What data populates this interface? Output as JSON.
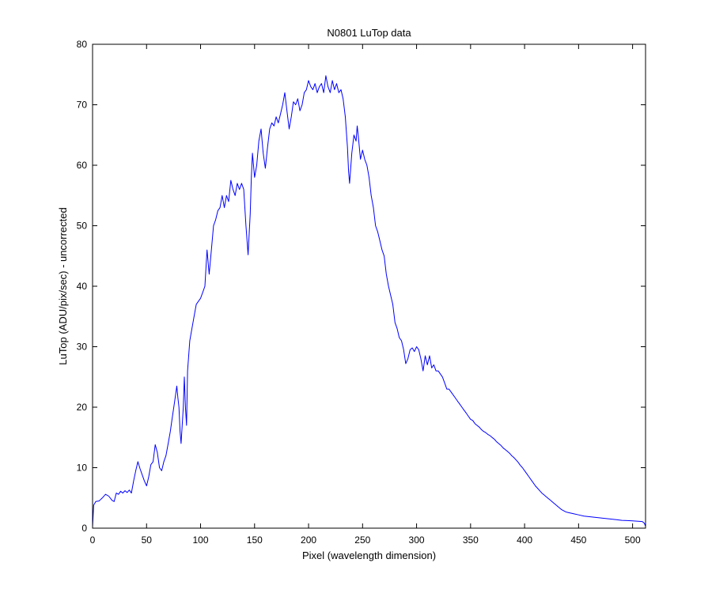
{
  "figure": {
    "title": "N0801   LuTop data",
    "xlabel": "Pixel (wavelength dimension)",
    "ylabel": "LuTop (ADU/pix/sec) - uncorrected",
    "background": "#ffffff",
    "axes_color": "#000000",
    "line_color": "#0000ff"
  },
  "chart_data": {
    "type": "line",
    "title": "N0801   LuTop data",
    "xlabel": "Pixel (wavelength dimension)",
    "ylabel": "LuTop (ADU/pix/sec) - uncorrected",
    "xlim": [
      0,
      512
    ],
    "ylim": [
      0,
      80
    ],
    "xticks": [
      0,
      50,
      100,
      150,
      200,
      250,
      300,
      350,
      400,
      450,
      500
    ],
    "xtick_labels": [
      "0",
      "50",
      "100",
      "150",
      "200",
      "250",
      "300",
      "350",
      "400",
      "450",
      "500"
    ],
    "yticks": [
      0,
      10,
      20,
      30,
      40,
      50,
      60,
      70,
      80
    ],
    "ytick_labels": [
      "0",
      "10",
      "20",
      "30",
      "40",
      "50",
      "60",
      "70",
      "80"
    ],
    "grid": false,
    "legend": "none",
    "series": [
      {
        "color": "#0000ff",
        "points": [
          [
            0,
            0.2
          ],
          [
            1,
            3.8
          ],
          [
            3,
            4.4
          ],
          [
            6,
            4.5
          ],
          [
            9,
            5.0
          ],
          [
            12,
            5.6
          ],
          [
            15,
            5.3
          ],
          [
            18,
            4.6
          ],
          [
            20,
            4.4
          ],
          [
            22,
            5.8
          ],
          [
            24,
            5.6
          ],
          [
            26,
            6.1
          ],
          [
            28,
            5.8
          ],
          [
            30,
            6.2
          ],
          [
            32,
            5.9
          ],
          [
            34,
            6.3
          ],
          [
            36,
            5.8
          ],
          [
            38,
            7.8
          ],
          [
            40,
            9.5
          ],
          [
            42,
            11.0
          ],
          [
            44,
            9.8
          ],
          [
            46,
            8.8
          ],
          [
            48,
            7.8
          ],
          [
            50,
            7.0
          ],
          [
            52,
            8.5
          ],
          [
            54,
            10.5
          ],
          [
            56,
            11.0
          ],
          [
            58,
            13.8
          ],
          [
            60,
            12.5
          ],
          [
            62,
            10.0
          ],
          [
            64,
            9.5
          ],
          [
            66,
            11.0
          ],
          [
            68,
            12.0
          ],
          [
            70,
            14.0
          ],
          [
            72,
            16.0
          ],
          [
            74,
            18.5
          ],
          [
            76,
            21.0
          ],
          [
            78,
            23.5
          ],
          [
            79,
            21.5
          ],
          [
            80,
            20.0
          ],
          [
            81,
            16.0
          ],
          [
            82,
            14.0
          ],
          [
            84,
            20.0
          ],
          [
            85,
            25.0
          ],
          [
            86,
            20.0
          ],
          [
            87,
            17.0
          ],
          [
            88,
            26.0
          ],
          [
            90,
            31.0
          ],
          [
            92,
            33.0
          ],
          [
            94,
            35.0
          ],
          [
            96,
            37.0
          ],
          [
            98,
            37.5
          ],
          [
            100,
            38.0
          ],
          [
            102,
            39.0
          ],
          [
            104,
            40.0
          ],
          [
            106,
            46.0
          ],
          [
            108,
            42.0
          ],
          [
            110,
            46.0
          ],
          [
            112,
            50.0
          ],
          [
            114,
            51.0
          ],
          [
            116,
            52.5
          ],
          [
            118,
            53.0
          ],
          [
            120,
            55.0
          ],
          [
            122,
            53.0
          ],
          [
            124,
            55.0
          ],
          [
            126,
            54.0
          ],
          [
            128,
            57.5
          ],
          [
            130,
            56.0
          ],
          [
            132,
            55.0
          ],
          [
            134,
            57.0
          ],
          [
            136,
            56.0
          ],
          [
            138,
            57.0
          ],
          [
            140,
            56.0
          ],
          [
            142,
            50.0
          ],
          [
            144,
            45.2
          ],
          [
            146,
            52.0
          ],
          [
            147,
            58.0
          ],
          [
            148,
            62.0
          ],
          [
            150,
            58.0
          ],
          [
            152,
            60.0
          ],
          [
            154,
            64.0
          ],
          [
            156,
            66.0
          ],
          [
            158,
            62.0
          ],
          [
            160,
            59.5
          ],
          [
            162,
            63.0
          ],
          [
            164,
            66.0
          ],
          [
            166,
            67.0
          ],
          [
            168,
            66.5
          ],
          [
            170,
            68.0
          ],
          [
            172,
            67.0
          ],
          [
            174,
            68.5
          ],
          [
            176,
            70.0
          ],
          [
            178,
            72.0
          ],
          [
            180,
            69.0
          ],
          [
            182,
            66.0
          ],
          [
            184,
            68.0
          ],
          [
            186,
            70.5
          ],
          [
            188,
            70.0
          ],
          [
            190,
            71.0
          ],
          [
            192,
            69.0
          ],
          [
            194,
            70.0
          ],
          [
            196,
            72.0
          ],
          [
            198,
            72.5
          ],
          [
            200,
            74.0
          ],
          [
            202,
            73.0
          ],
          [
            204,
            72.5
          ],
          [
            206,
            73.5
          ],
          [
            208,
            72.0
          ],
          [
            210,
            73.0
          ],
          [
            212,
            73.5
          ],
          [
            214,
            72.0
          ],
          [
            216,
            74.8
          ],
          [
            218,
            73.0
          ],
          [
            220,
            72.0
          ],
          [
            222,
            74.0
          ],
          [
            224,
            72.5
          ],
          [
            226,
            73.5
          ],
          [
            228,
            72.0
          ],
          [
            230,
            72.5
          ],
          [
            232,
            71.0
          ],
          [
            234,
            68.0
          ],
          [
            236,
            63.0
          ],
          [
            237,
            59.0
          ],
          [
            238,
            57.0
          ],
          [
            240,
            62.0
          ],
          [
            242,
            65.0
          ],
          [
            244,
            64.0
          ],
          [
            245,
            66.5
          ],
          [
            246,
            65.0
          ],
          [
            248,
            61.0
          ],
          [
            250,
            62.5
          ],
          [
            252,
            61.0
          ],
          [
            254,
            60.0
          ],
          [
            256,
            58.0
          ],
          [
            258,
            55.0
          ],
          [
            260,
            53.0
          ],
          [
            262,
            50.0
          ],
          [
            264,
            49.0
          ],
          [
            266,
            47.5
          ],
          [
            268,
            46.0
          ],
          [
            270,
            45.0
          ],
          [
            272,
            42.0
          ],
          [
            274,
            40.0
          ],
          [
            276,
            38.5
          ],
          [
            278,
            37.0
          ],
          [
            280,
            34.0
          ],
          [
            282,
            33.0
          ],
          [
            284,
            31.5
          ],
          [
            286,
            31.0
          ],
          [
            288,
            29.5
          ],
          [
            290,
            27.2
          ],
          [
            292,
            28.0
          ],
          [
            294,
            29.5
          ],
          [
            296,
            29.8
          ],
          [
            298,
            29.2
          ],
          [
            300,
            30.0
          ],
          [
            302,
            29.5
          ],
          [
            304,
            28.0
          ],
          [
            306,
            26.0
          ],
          [
            308,
            28.5
          ],
          [
            310,
            27.0
          ],
          [
            312,
            28.5
          ],
          [
            314,
            26.5
          ],
          [
            316,
            27.0
          ],
          [
            318,
            26.0
          ],
          [
            320,
            26.0
          ],
          [
            322,
            25.5
          ],
          [
            324,
            25.0
          ],
          [
            326,
            24.0
          ],
          [
            328,
            23.0
          ],
          [
            330,
            23.0
          ],
          [
            332,
            22.5
          ],
          [
            334,
            22.0
          ],
          [
            336,
            21.5
          ],
          [
            338,
            21.0
          ],
          [
            340,
            20.5
          ],
          [
            342,
            20.0
          ],
          [
            344,
            19.5
          ],
          [
            346,
            19.0
          ],
          [
            348,
            18.5
          ],
          [
            350,
            18.0
          ],
          [
            352,
            17.8
          ],
          [
            354,
            17.3
          ],
          [
            356,
            17.0
          ],
          [
            358,
            16.7
          ],
          [
            360,
            16.3
          ],
          [
            362,
            16.0
          ],
          [
            364,
            15.8
          ],
          [
            366,
            15.5
          ],
          [
            368,
            15.3
          ],
          [
            370,
            15.0
          ],
          [
            372,
            14.7
          ],
          [
            374,
            14.3
          ],
          [
            376,
            14.0
          ],
          [
            378,
            13.7
          ],
          [
            380,
            13.3
          ],
          [
            382,
            13.0
          ],
          [
            384,
            12.7
          ],
          [
            386,
            12.4
          ],
          [
            388,
            12.0
          ],
          [
            390,
            11.7
          ],
          [
            392,
            11.3
          ],
          [
            394,
            10.9
          ],
          [
            396,
            10.4
          ],
          [
            398,
            10.0
          ],
          [
            400,
            9.5
          ],
          [
            402,
            9.0
          ],
          [
            404,
            8.5
          ],
          [
            406,
            8.0
          ],
          [
            408,
            7.5
          ],
          [
            410,
            7.0
          ],
          [
            412,
            6.6
          ],
          [
            414,
            6.2
          ],
          [
            416,
            5.8
          ],
          [
            418,
            5.5
          ],
          [
            420,
            5.2
          ],
          [
            422,
            4.9
          ],
          [
            424,
            4.6
          ],
          [
            426,
            4.3
          ],
          [
            428,
            4.0
          ],
          [
            430,
            3.7
          ],
          [
            432,
            3.4
          ],
          [
            434,
            3.1
          ],
          [
            436,
            2.9
          ],
          [
            438,
            2.7
          ],
          [
            440,
            2.6
          ],
          [
            445,
            2.4
          ],
          [
            450,
            2.2
          ],
          [
            455,
            2.0
          ],
          [
            460,
            1.9
          ],
          [
            465,
            1.8
          ],
          [
            470,
            1.7
          ],
          [
            475,
            1.6
          ],
          [
            480,
            1.5
          ],
          [
            485,
            1.4
          ],
          [
            490,
            1.3
          ],
          [
            495,
            1.25
          ],
          [
            500,
            1.2
          ],
          [
            505,
            1.15
          ],
          [
            509,
            1.1
          ],
          [
            511,
            0.8
          ],
          [
            512,
            0.3
          ]
        ]
      }
    ]
  }
}
